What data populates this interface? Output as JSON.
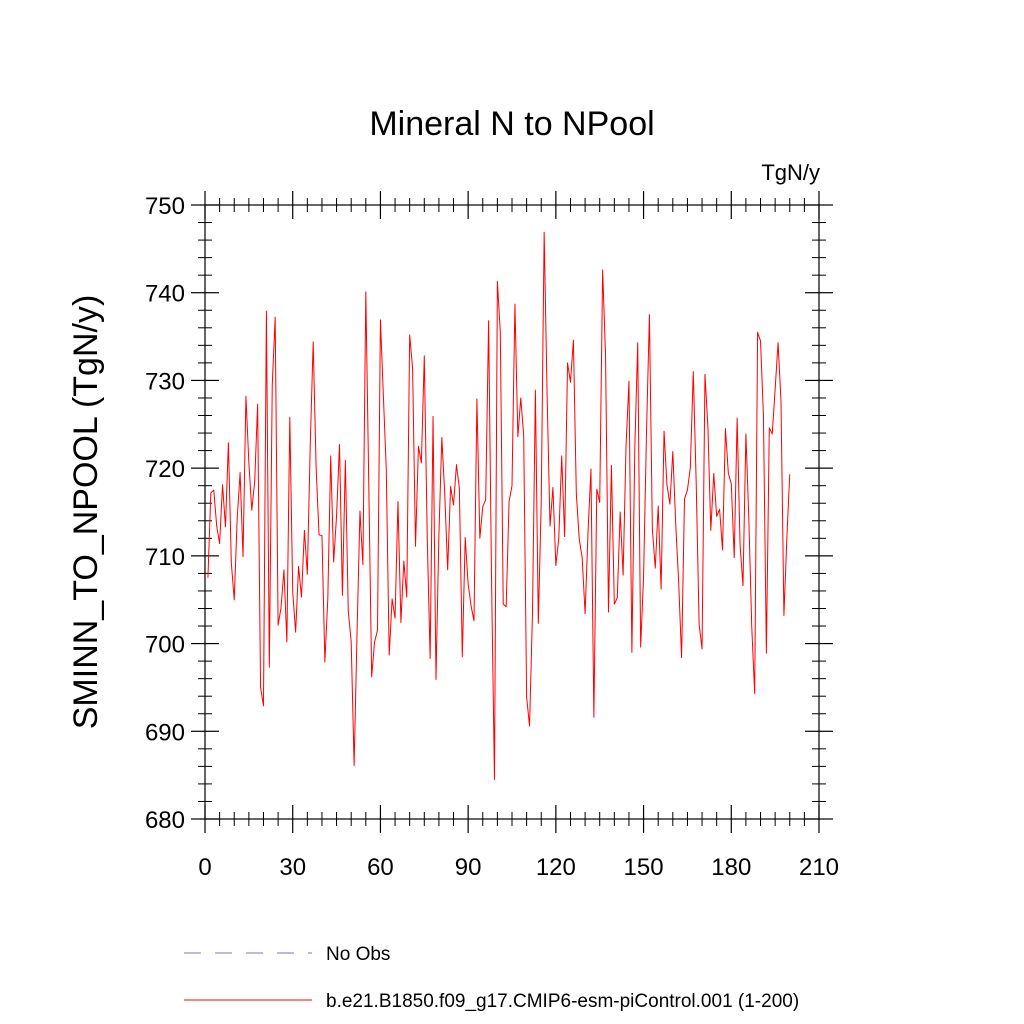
{
  "chart_data": {
    "type": "line",
    "title": "Mineral N to NPool",
    "units": "TgN/y",
    "ylabel": "SMINN_TO_NPOOL  (TgN/y)",
    "xlabel": "",
    "xlim": [
      0,
      210
    ],
    "ylim": [
      680,
      750
    ],
    "xticks": [
      0,
      30,
      60,
      90,
      120,
      150,
      180,
      210
    ],
    "yticks": [
      680,
      690,
      700,
      710,
      720,
      730,
      740,
      750
    ],
    "xticks_minor": [
      5,
      10,
      15,
      20,
      25,
      35,
      40,
      45,
      50,
      55,
      65,
      70,
      75,
      80,
      85,
      95,
      100,
      105,
      110,
      115,
      125,
      130,
      135,
      140,
      145,
      155,
      160,
      165,
      170,
      175,
      185,
      190,
      195,
      200,
      205
    ],
    "yticks_minor": [
      682,
      684,
      686,
      688,
      692,
      694,
      696,
      698,
      702,
      704,
      706,
      708,
      712,
      714,
      716,
      718,
      722,
      724,
      726,
      728,
      732,
      734,
      736,
      738,
      742,
      744,
      746,
      748
    ],
    "series": [
      {
        "name": "b.e21.B1850.f09_g17.CMIP6-esm-piControl.001 (1-200)",
        "color": "#ff0000",
        "style": "solid",
        "x_start": 1,
        "values": [
          707.5,
          717.2,
          717.5,
          713.4,
          711.4,
          718.1,
          713.3,
          722.9,
          709.2,
          705.0,
          714.2,
          719.5,
          709.9,
          728.2,
          720.6,
          715.2,
          718.5,
          727.3,
          695.0,
          692.9,
          737.9,
          697.3,
          729.5,
          737.2,
          702.1,
          704.1,
          708.4,
          700.2,
          725.8,
          705.9,
          701.3,
          708.8,
          705.3,
          712.9,
          707.9,
          722.7,
          734.4,
          720.1,
          712.4,
          712.3,
          697.9,
          705.1,
          721.4,
          709.3,
          714.6,
          722.7,
          705.5,
          720.9,
          703.7,
          700.2,
          686.1,
          701.2,
          715.1,
          709.0,
          740.1,
          718.5,
          696.2,
          700.2,
          701.5,
          736.9,
          728.3,
          719.8,
          698.7,
          705.1,
          702.9,
          716.2,
          702.4,
          709.4,
          705.3,
          735.2,
          731.4,
          711.1,
          722.5,
          720.6,
          732.8,
          712.2,
          698.3,
          725.9,
          695.9,
          712.4,
          723.5,
          717.0,
          708.4,
          717.9,
          715.8,
          720.4,
          717.7,
          698.5,
          712.1,
          706.8,
          704.3,
          702.6,
          727.9,
          712.0,
          715.6,
          716.4,
          736.8,
          707.4,
          684.5,
          741.3,
          735.5,
          704.5,
          704.2,
          716.2,
          718.0,
          738.7,
          723.6,
          728.0,
          723.7,
          693.9,
          690.6,
          703.4,
          728.9,
          702.3,
          716.3,
          746.9,
          728.4,
          713.4,
          717.8,
          708.9,
          712.0,
          721.4,
          712.2,
          732.0,
          729.8,
          734.6,
          717.1,
          711.9,
          709.8,
          703.4,
          712.7,
          719.9,
          691.6,
          717.6,
          716.1,
          742.6,
          732.8,
          703.6,
          720.3,
          704.5,
          705.2,
          715.0,
          707.8,
          722.5,
          729.9,
          699.0,
          722.3,
          734.3,
          699.6,
          707.6,
          724.1,
          737.5,
          713.1,
          708.6,
          715.7,
          706.2,
          724.2,
          718.1,
          715.9,
          721.9,
          713.6,
          707.0,
          698.4,
          716.5,
          717.5,
          720.1,
          731.0,
          718.3,
          702.2,
          699.4,
          730.7,
          724.7,
          712.9,
          719.4,
          714.5,
          715.3,
          710.7,
          724.5,
          719.4,
          718.2,
          709.8,
          725.7,
          711.3,
          706.6,
          723.9,
          714.2,
          701.9,
          694.3,
          735.5,
          734.5,
          725.9,
          698.9,
          724.6,
          723.9,
          729.0,
          734.3,
          727.6,
          703.2,
          712.0,
          719.3
        ]
      }
    ],
    "legend": [
      {
        "label": "No Obs",
        "color": "#7777bb",
        "style": "dashed"
      },
      {
        "label": "b.e21.B1850.f09_g17.CMIP6-esm-piControl.001 (1-200)",
        "color": "#ff0000",
        "style": "solid"
      }
    ],
    "legend_position": "bottom"
  }
}
